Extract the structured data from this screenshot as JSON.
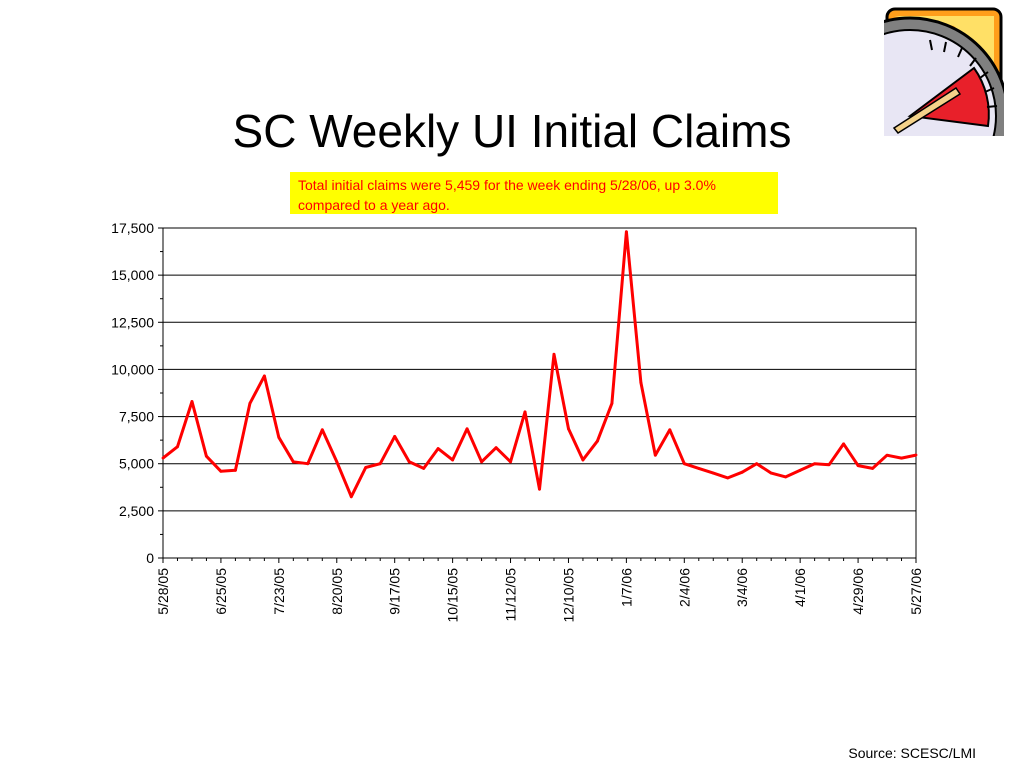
{
  "slide": {
    "title": "SC Weekly UI Initial Claims",
    "callout": "Total initial claims were 5,459 for the week ending 5/28/06, up 3.0% compared to a year ago.",
    "source": "Source: SCESC/LMI"
  },
  "colors": {
    "line": "#ff0000",
    "callout_bg": "#ffff00",
    "callout_text": "#ff0000",
    "grid": "#000000"
  },
  "icons": {
    "corner_graphic": "speedometer-gauge-icon"
  },
  "chart_data": {
    "type": "line",
    "title": "",
    "xlabel": "",
    "ylabel": "",
    "ylim": [
      0,
      17500
    ],
    "yticks": [
      0,
      2500,
      5000,
      7500,
      10000,
      12500,
      15000,
      17500
    ],
    "ytick_labels": [
      "0",
      "2,500",
      "5,000",
      "7,500",
      "10,000",
      "12,500",
      "15,000",
      "17,500"
    ],
    "grid": "horizontal",
    "xtick_labels": [
      "5/28/05",
      "6/25/05",
      "7/23/05",
      "8/20/05",
      "9/17/05",
      "10/15/05",
      "11/12/05",
      "12/10/05",
      "1/7/06",
      "2/4/06",
      "3/4/06",
      "4/1/06",
      "4/29/06",
      "5/27/06"
    ],
    "xtick_every": 4,
    "series": [
      {
        "values": [
          5300,
          5900,
          8300,
          5400,
          4600,
          4650,
          8200,
          9650,
          6400,
          5100,
          5000,
          6800,
          5100,
          3250,
          4800,
          5000,
          6450,
          5100,
          4750,
          5800,
          5200,
          6850,
          5100,
          5850,
          5100,
          7750,
          3650,
          10800,
          6850,
          5200,
          6200,
          8200,
          17300,
          9300,
          5450,
          6800,
          5000,
          4750,
          4500,
          4250,
          4550,
          5000,
          4500,
          4300,
          4650,
          5000,
          4950,
          6050,
          4900,
          4750,
          5450,
          5300,
          5459
        ]
      }
    ]
  }
}
